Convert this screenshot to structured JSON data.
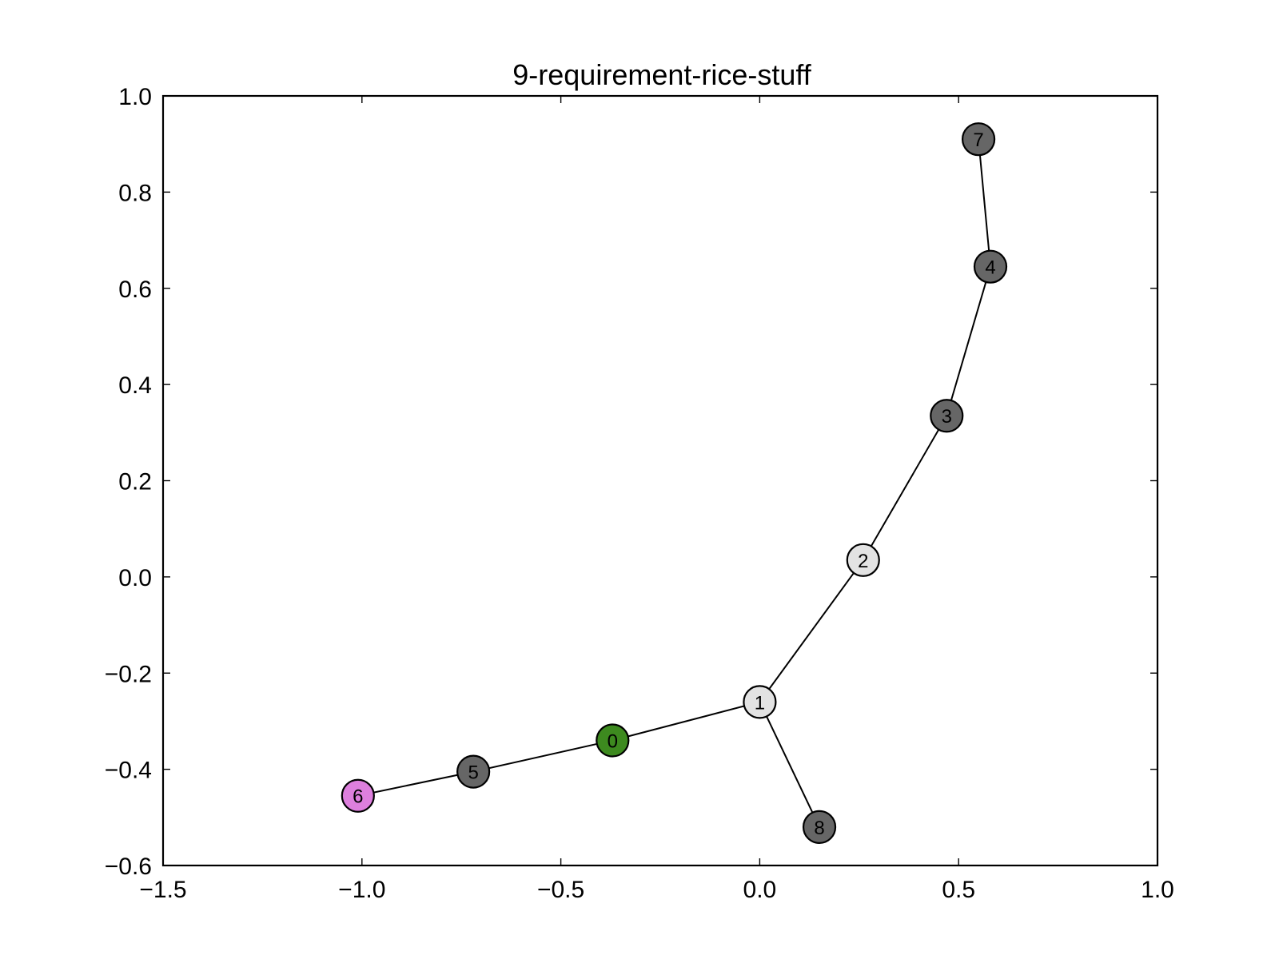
{
  "chart_data": {
    "type": "scatter",
    "title": "9-requirement-rice-stuff",
    "xlabel": "",
    "ylabel": "",
    "xlim": [
      -1.5,
      1.0
    ],
    "ylim": [
      -0.6,
      1.0
    ],
    "x_ticks": [
      "−1.5",
      "−1.0",
      "−0.5",
      "0.0",
      "0.5",
      "1.0"
    ],
    "x_tick_values": [
      -1.5,
      -1.0,
      -0.5,
      0.0,
      0.5,
      1.0
    ],
    "y_ticks": [
      "−0.6",
      "−0.4",
      "−0.2",
      "0.0",
      "0.2",
      "0.4",
      "0.6",
      "0.8",
      "1.0"
    ],
    "y_tick_values": [
      -0.6,
      -0.4,
      -0.2,
      0.0,
      0.2,
      0.4,
      0.6,
      0.8,
      1.0
    ],
    "grid": false,
    "nodes": [
      {
        "id": "0",
        "x": -0.37,
        "y": -0.34,
        "color": "#3d8a1f"
      },
      {
        "id": "1",
        "x": 0.0,
        "y": -0.26,
        "color": "#e3e3e3"
      },
      {
        "id": "2",
        "x": 0.26,
        "y": 0.035,
        "color": "#e3e3e3"
      },
      {
        "id": "3",
        "x": 0.47,
        "y": 0.335,
        "color": "#666666"
      },
      {
        "id": "4",
        "x": 0.58,
        "y": 0.645,
        "color": "#666666"
      },
      {
        "id": "5",
        "x": -0.72,
        "y": -0.405,
        "color": "#666666"
      },
      {
        "id": "6",
        "x": -1.01,
        "y": -0.455,
        "color": "#dd7fdd"
      },
      {
        "id": "7",
        "x": 0.55,
        "y": 0.91,
        "color": "#666666"
      },
      {
        "id": "8",
        "x": 0.15,
        "y": -0.52,
        "color": "#666666"
      }
    ],
    "edges": [
      [
        "6",
        "5"
      ],
      [
        "5",
        "0"
      ],
      [
        "0",
        "1"
      ],
      [
        "1",
        "2"
      ],
      [
        "1",
        "8"
      ],
      [
        "2",
        "3"
      ],
      [
        "3",
        "4"
      ],
      [
        "4",
        "7"
      ]
    ]
  }
}
